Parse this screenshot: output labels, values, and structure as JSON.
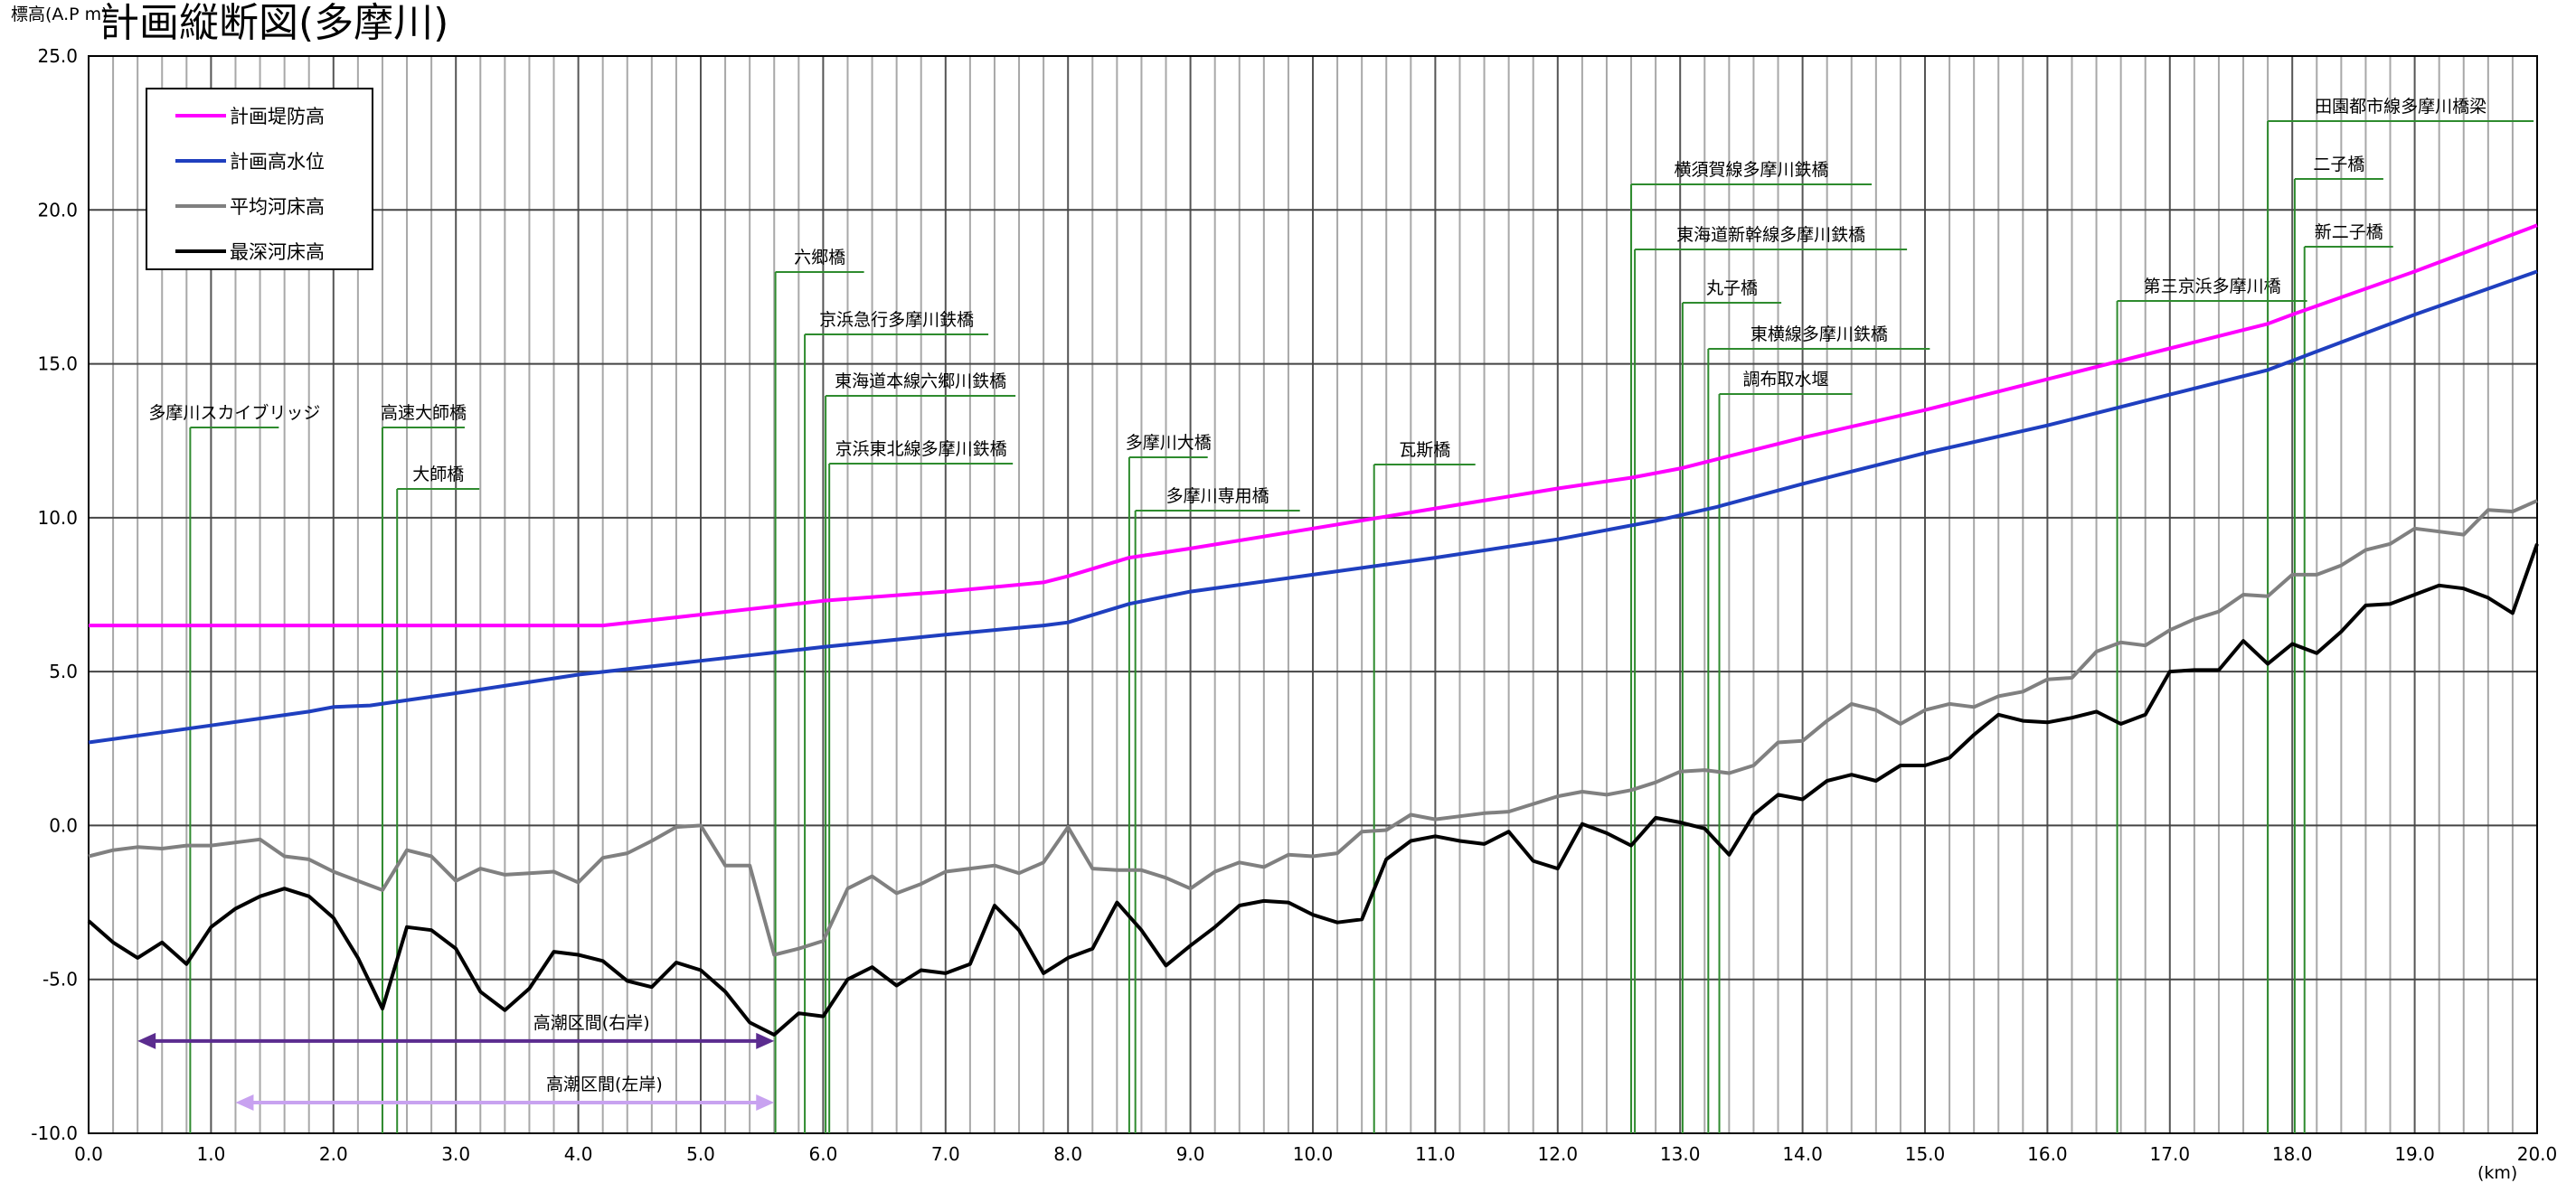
{
  "chart_data": {
    "type": "line",
    "title": "計画縦断図(多摩川)",
    "ylabel": "標高(A.P m)",
    "xlabel": "(km)",
    "xlim": [
      0,
      20
    ],
    "ylim": [
      -10,
      25
    ],
    "xticks": [
      0,
      1,
      2,
      3,
      4,
      5,
      6,
      7,
      8,
      9,
      10,
      11,
      12,
      13,
      14,
      15,
      16,
      17,
      18,
      19,
      20
    ],
    "yticks": [
      25,
      20,
      15,
      10,
      5,
      0,
      -5,
      -10
    ],
    "xtick_labels": [
      "0.0",
      "1.0",
      "2.0",
      "3.0",
      "4.0",
      "5.0",
      "6.0",
      "7.0",
      "8.0",
      "9.0",
      "10.0",
      "11.0",
      "12.0",
      "13.0",
      "14.0",
      "15.0",
      "16.0",
      "17.0",
      "18.0",
      "19.0",
      "20.0"
    ],
    "ytick_labels": [
      "25.0",
      "20.0",
      "15.0",
      "10.0",
      "5.0",
      "0.0",
      "-5.0",
      "-10.0"
    ],
    "grid": true,
    "legend_position": "top-left",
    "series": [
      {
        "name": "計画堤防高",
        "color": "#ff00ff",
        "x": [
          0,
          1,
          2,
          3,
          4,
          4.2,
          5,
          6,
          7,
          7.8,
          8.0,
          8.5,
          9,
          10,
          11,
          12,
          12.6,
          13.0,
          13.4,
          14,
          15,
          16,
          17,
          17.8,
          18,
          19,
          20
        ],
        "y": [
          6.5,
          6.5,
          6.5,
          6.5,
          6.5,
          6.5,
          6.85,
          7.3,
          7.6,
          7.9,
          8.1,
          8.7,
          9.0,
          9.65,
          10.3,
          10.95,
          11.3,
          11.6,
          12.0,
          12.6,
          13.5,
          14.5,
          15.5,
          16.3,
          16.6,
          18.0,
          19.5
        ]
      },
      {
        "name": "計画高水位",
        "color": "#1f3fbf",
        "x": [
          0,
          1,
          1.8,
          2.0,
          2.3,
          3,
          4,
          5,
          6,
          7,
          7.8,
          8.0,
          8.5,
          9,
          10,
          11,
          12,
          12.8,
          13.3,
          14,
          15,
          16,
          17,
          17.8,
          18.2,
          19,
          20
        ],
        "y": [
          2.7,
          3.25,
          3.7,
          3.85,
          3.9,
          4.3,
          4.9,
          5.35,
          5.8,
          6.2,
          6.5,
          6.6,
          7.2,
          7.6,
          8.15,
          8.7,
          9.3,
          9.9,
          10.35,
          11.1,
          12.1,
          13.0,
          14.0,
          14.8,
          15.4,
          16.6,
          18.0
        ]
      },
      {
        "name": "平均河床高",
        "color": "#808080",
        "x": [
          0,
          0.2,
          0.4,
          0.6,
          0.8,
          1.0,
          1.2,
          1.4,
          1.6,
          1.8,
          2.0,
          2.2,
          2.4,
          2.6,
          2.8,
          3.0,
          3.2,
          3.4,
          3.6,
          3.8,
          4.0,
          4.2,
          4.4,
          4.6,
          4.8,
          5.0,
          5.2,
          5.4,
          5.6,
          5.8,
          6.0,
          6.2,
          6.4,
          6.6,
          6.8,
          7.0,
          7.2,
          7.4,
          7.6,
          7.8,
          8.0,
          8.2,
          8.4,
          8.6,
          8.8,
          9.0,
          9.2,
          9.4,
          9.6,
          9.8,
          10.0,
          10.2,
          10.4,
          10.6,
          10.8,
          11.0,
          11.2,
          11.4,
          11.6,
          11.8,
          12.0,
          12.2,
          12.4,
          12.6,
          12.8,
          13.0,
          13.2,
          13.4,
          13.6,
          13.8,
          14.0,
          14.2,
          14.4,
          14.6,
          14.8,
          15.0,
          15.2,
          15.4,
          15.6,
          15.8,
          16.0,
          16.2,
          16.4,
          16.6,
          16.8,
          17.0,
          17.2,
          17.4,
          17.6,
          17.8,
          18.0,
          18.2,
          18.4,
          18.6,
          18.8,
          19.0,
          19.2,
          19.4,
          19.6,
          19.8,
          20.0
        ],
        "y": [
          -1.0,
          -0.8,
          -0.7,
          -0.75,
          -0.65,
          -0.65,
          -0.55,
          -0.45,
          -1.0,
          -1.1,
          -1.5,
          -1.8,
          -2.1,
          -0.8,
          -1.0,
          -1.8,
          -1.4,
          -1.6,
          -1.55,
          -1.5,
          -1.85,
          -1.05,
          -0.9,
          -0.5,
          -0.05,
          0.0,
          -1.3,
          -1.3,
          -4.2,
          -4.0,
          -3.75,
          -2.05,
          -1.65,
          -2.2,
          -1.9,
          -1.5,
          -1.4,
          -1.3,
          -1.55,
          -1.2,
          -0.05,
          -1.4,
          -1.45,
          -1.45,
          -1.7,
          -2.05,
          -1.5,
          -1.2,
          -1.35,
          -0.95,
          -1.0,
          -0.9,
          -0.2,
          -0.15,
          0.35,
          0.2,
          0.3,
          0.4,
          0.45,
          0.7,
          0.95,
          1.1,
          1.0,
          1.15,
          1.4,
          1.75,
          1.8,
          1.7,
          1.95,
          2.7,
          2.75,
          3.4,
          3.95,
          3.75,
          3.3,
          3.75,
          3.95,
          3.85,
          4.2,
          4.35,
          4.75,
          4.8,
          5.65,
          5.95,
          5.85,
          6.35,
          6.7,
          6.95,
          7.5,
          7.45,
          8.15,
          8.15,
          8.45,
          8.95,
          9.15,
          9.65,
          9.55,
          9.45,
          10.25,
          10.2,
          10.55
        ]
      },
      {
        "name": "最深河床高",
        "color": "#000000",
        "x": [
          0,
          0.2,
          0.4,
          0.6,
          0.8,
          1.0,
          1.2,
          1.4,
          1.6,
          1.8,
          2.0,
          2.2,
          2.4,
          2.6,
          2.8,
          3.0,
          3.2,
          3.4,
          3.6,
          3.8,
          4.0,
          4.2,
          4.4,
          4.6,
          4.8,
          5.0,
          5.2,
          5.4,
          5.6,
          5.8,
          6.0,
          6.2,
          6.4,
          6.6,
          6.8,
          7.0,
          7.2,
          7.4,
          7.6,
          7.8,
          8.0,
          8.2,
          8.4,
          8.6,
          8.8,
          9.0,
          9.2,
          9.4,
          9.6,
          9.8,
          10.0,
          10.2,
          10.4,
          10.6,
          10.8,
          11.0,
          11.2,
          11.4,
          11.6,
          11.8,
          12.0,
          12.2,
          12.4,
          12.6,
          12.8,
          13.0,
          13.2,
          13.4,
          13.6,
          13.8,
          14.0,
          14.2,
          14.4,
          14.6,
          14.8,
          15.0,
          15.2,
          15.4,
          15.6,
          15.8,
          16.0,
          16.2,
          16.4,
          16.6,
          16.8,
          17.0,
          17.2,
          17.4,
          17.6,
          17.8,
          18.0,
          18.2,
          18.4,
          18.6,
          18.8,
          19.0,
          19.2,
          19.4,
          19.6,
          19.8,
          20.0
        ],
        "y": [
          -3.1,
          -3.8,
          -4.3,
          -3.8,
          -4.5,
          -3.3,
          -2.7,
          -2.3,
          -2.05,
          -2.3,
          -3.0,
          -4.3,
          -5.95,
          -3.3,
          -3.4,
          -4.0,
          -5.4,
          -6.0,
          -5.3,
          -4.1,
          -4.2,
          -4.4,
          -5.05,
          -5.25,
          -4.45,
          -4.7,
          -5.4,
          -6.4,
          -6.8,
          -6.1,
          -6.2,
          -5.0,
          -4.6,
          -5.2,
          -4.7,
          -4.8,
          -4.5,
          -2.6,
          -3.4,
          -4.8,
          -4.3,
          -4.0,
          -2.5,
          -3.4,
          -4.55,
          -3.9,
          -3.3,
          -2.6,
          -2.45,
          -2.5,
          -2.9,
          -3.15,
          -3.05,
          -1.1,
          -0.5,
          -0.35,
          -0.5,
          -0.6,
          -0.2,
          -1.15,
          -1.4,
          0.05,
          -0.25,
          -0.65,
          0.25,
          0.1,
          -0.1,
          -0.95,
          0.35,
          1.0,
          0.85,
          1.45,
          1.65,
          1.45,
          1.95,
          1.95,
          2.2,
          2.95,
          3.6,
          3.4,
          3.35,
          3.5,
          3.7,
          3.3,
          3.6,
          5.0,
          5.05,
          5.05,
          6.0,
          5.25,
          5.9,
          5.6,
          6.3,
          7.15,
          7.2,
          7.5,
          7.8,
          7.7,
          7.4,
          6.9,
          9.15
        ]
      }
    ],
    "bridges": [
      {
        "name": "多摩川スカイブリッジ",
        "km": 0.83
      },
      {
        "name": "高速大師橋",
        "km": 2.4
      },
      {
        "name": "大師橋",
        "km": 2.52
      },
      {
        "name": "六郷橋",
        "km": 5.61
      },
      {
        "name": "京浜急行多摩川鉄橋",
        "km": 5.85
      },
      {
        "name": "東海道本線六郷川鉄橋",
        "km": 6.02
      },
      {
        "name": "京浜東北線多摩川鉄橋",
        "km": 6.05
      },
      {
        "name": "多摩川大橋",
        "km": 8.5
      },
      {
        "name": "多摩川専用橋",
        "km": 8.55
      },
      {
        "name": "瓦斯橋",
        "km": 10.5
      },
      {
        "name": "横須賀線多摩川鉄橋",
        "km": 12.6
      },
      {
        "name": "東海道新幹線多摩川鉄橋",
        "km": 12.63
      },
      {
        "name": "丸子橋",
        "km": 13.02
      },
      {
        "name": "東横線多摩川鉄橋",
        "km": 13.23
      },
      {
        "name": "調布取水堰",
        "km": 13.32
      },
      {
        "name": "第三京浜多摩川橋",
        "km": 16.57
      },
      {
        "name": "田園都市線多摩川橋梁",
        "km": 17.8
      },
      {
        "name": "二子橋",
        "km": 18.02
      },
      {
        "name": "新二子橋",
        "km": 18.1
      }
    ],
    "annotations": [
      {
        "text": "高潮区間(右岸)",
        "x_start": 0.4,
        "x_end": 5.6,
        "y": -7.0,
        "color": "#5b2c8f"
      },
      {
        "text": "高潮区間(左岸)",
        "x_start": 1.2,
        "x_end": 5.6,
        "y": -9.0,
        "color": "#c8a2f0"
      }
    ]
  }
}
